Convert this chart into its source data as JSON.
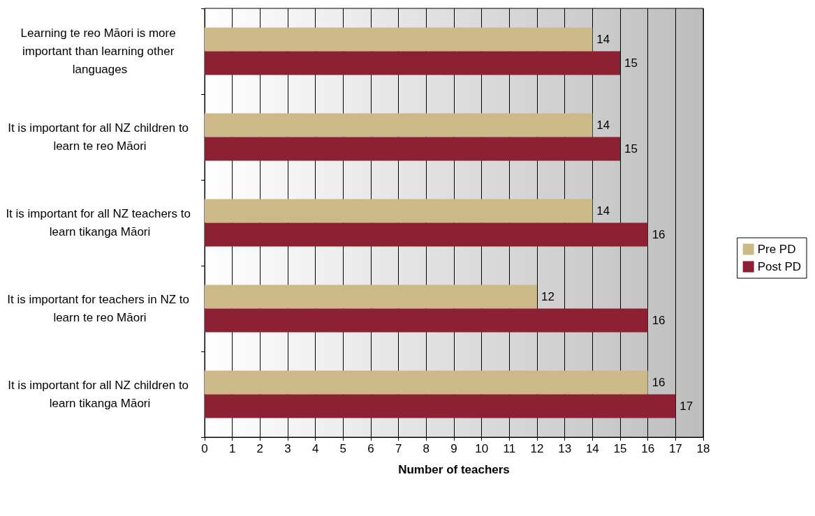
{
  "chart_data": {
    "type": "bar",
    "orientation": "horizontal",
    "xlabel": "Number of teachers",
    "categories": [
      "Learning te reo Māori is more important than learning other languages",
      "It is important for all NZ children to learn te reo Māori",
      "It is important for all NZ teachers to learn tikanga Māori",
      "It is important for teachers in NZ to learn te reo Māori",
      "It is important for all NZ children to learn tikanga Māori"
    ],
    "series": [
      {
        "name": "Pre PD",
        "color": "#cdb987",
        "values": [
          14,
          14,
          14,
          12,
          16
        ]
      },
      {
        "name": "Post PD",
        "color": "#8b2132",
        "values": [
          15,
          15,
          16,
          16,
          17
        ]
      }
    ],
    "xlim": [
      0,
      18
    ],
    "xticks": [
      0,
      1,
      2,
      3,
      4,
      5,
      6,
      7,
      8,
      9,
      10,
      11,
      12,
      13,
      14,
      15,
      16,
      17,
      18
    ],
    "grid": "x",
    "legend": "right",
    "data_labels": true
  }
}
